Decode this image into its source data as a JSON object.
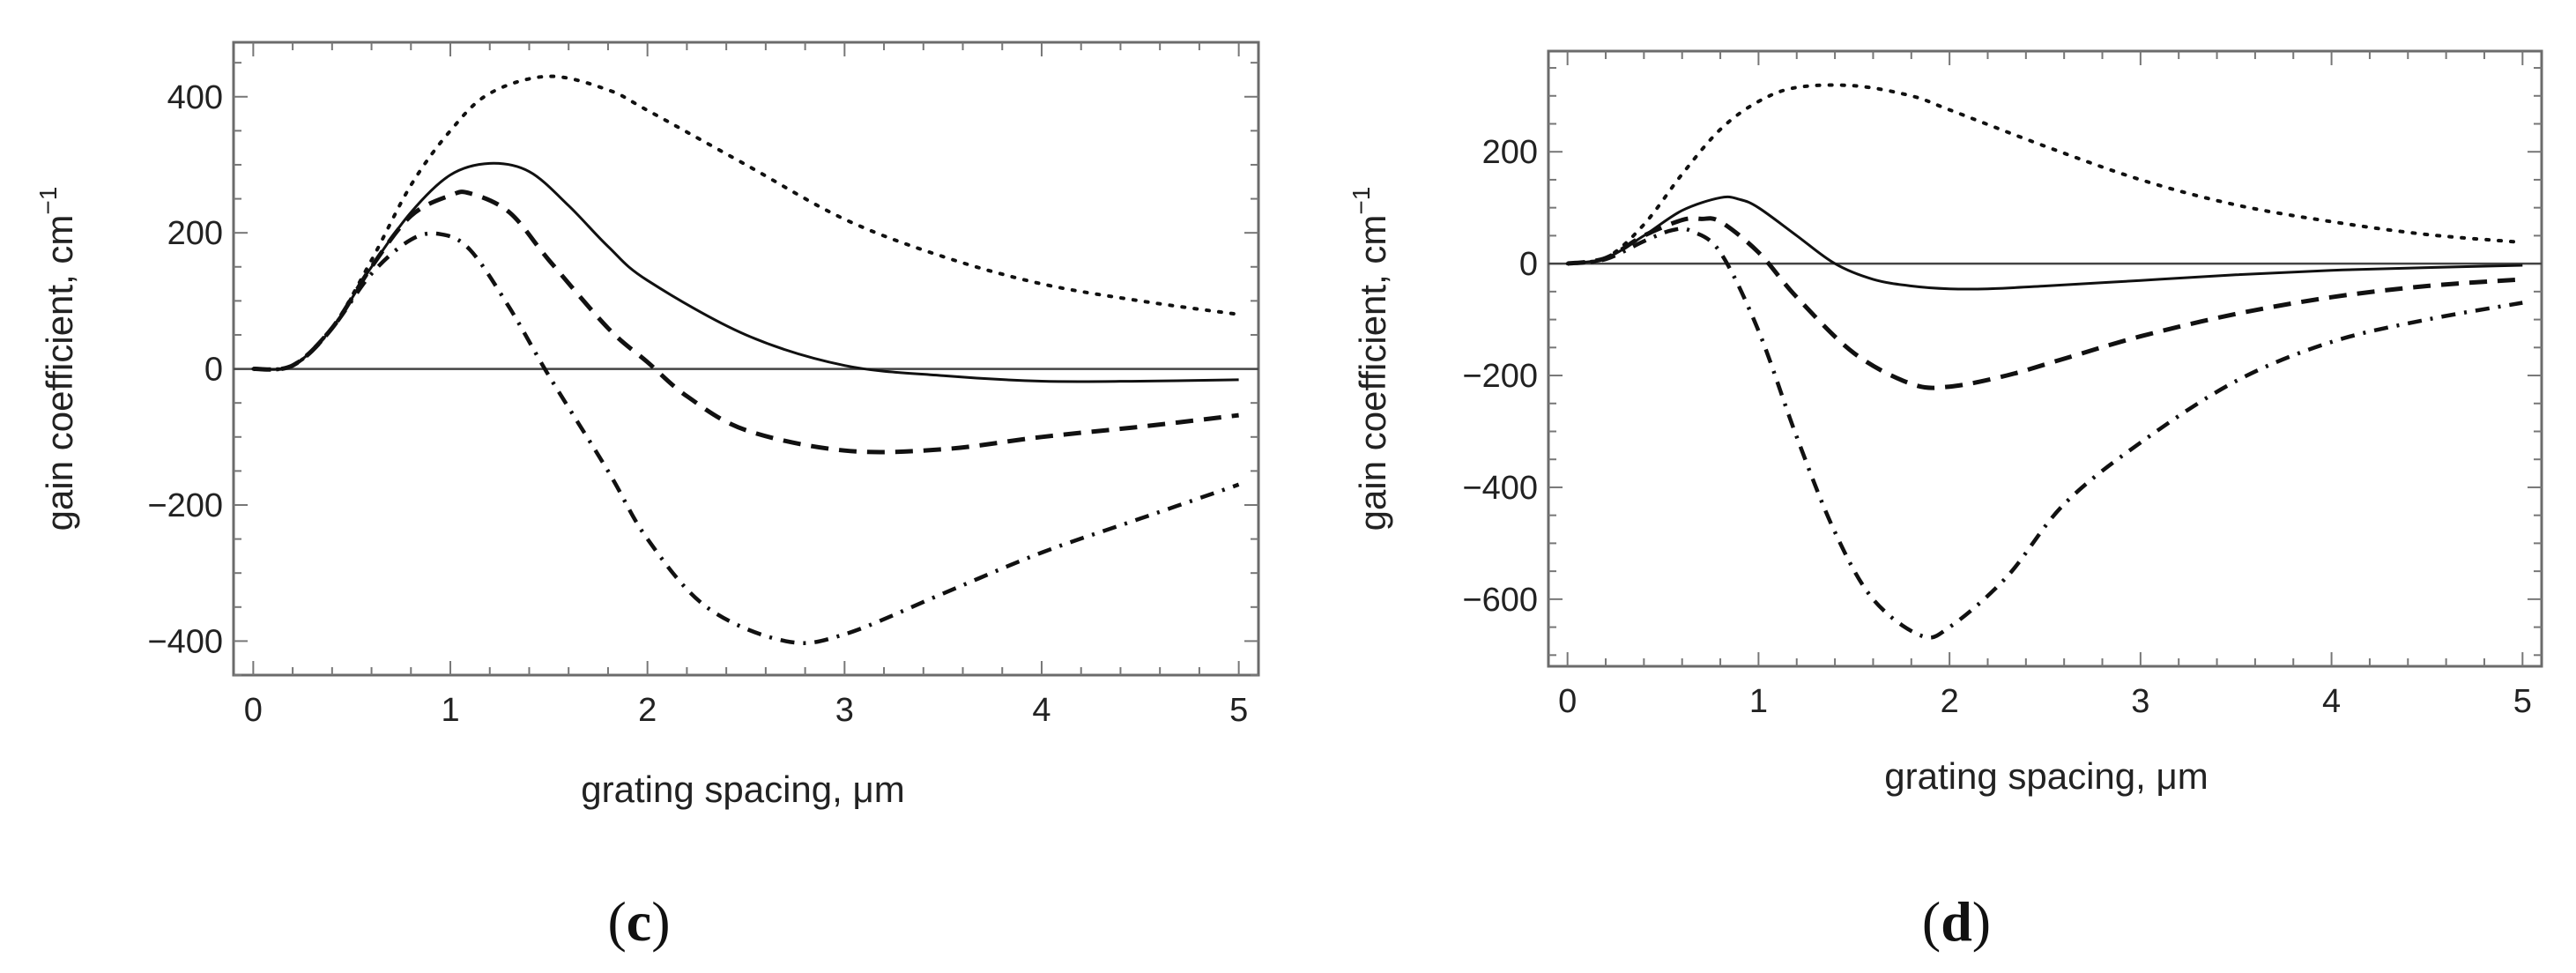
{
  "chart_data": [
    {
      "type": "line",
      "panel_label": "c",
      "xlabel": "grating spacing,  μm",
      "ylabel_main": "gain coefficient,  cm",
      "ylabel_exponent": "−1",
      "xlim": [
        -0.1,
        5.1
      ],
      "ylim": [
        -450,
        480
      ],
      "xticks": [
        0,
        1,
        2,
        3,
        4,
        5
      ],
      "xtick_labels": [
        "0",
        "1",
        "2",
        "3",
        "4",
        "5"
      ],
      "yticks": [
        -400,
        -200,
        0,
        200,
        400
      ],
      "ytick_labels": [
        "−400",
        "−200",
        "0",
        "200",
        "400"
      ],
      "grid": false,
      "zero_line": true,
      "series": [
        {
          "name": "dotted",
          "style": "dotted",
          "x": [
            0,
            0.2,
            0.4,
            0.6,
            0.8,
            1.0,
            1.2,
            1.5,
            1.8,
            2.0,
            2.5,
            3.0,
            3.5,
            4.0,
            4.5,
            5.0
          ],
          "y": [
            0,
            5,
            60,
            160,
            270,
            350,
            405,
            430,
            410,
            380,
            300,
            220,
            165,
            125,
            100,
            80
          ]
        },
        {
          "name": "solid",
          "style": "solid",
          "x": [
            0,
            0.2,
            0.4,
            0.6,
            0.8,
            1.0,
            1.2,
            1.4,
            1.6,
            1.8,
            2.0,
            2.5,
            3.0,
            3.5,
            4.0,
            4.5,
            5.0
          ],
          "y": [
            0,
            5,
            60,
            150,
            230,
            285,
            302,
            290,
            240,
            180,
            130,
            50,
            5,
            -10,
            -18,
            -18,
            -16
          ]
        },
        {
          "name": "dashed",
          "style": "dashed",
          "x": [
            0,
            0.2,
            0.4,
            0.6,
            0.8,
            1.0,
            1.1,
            1.3,
            1.5,
            1.8,
            2.0,
            2.2,
            2.5,
            3.0,
            3.5,
            4.0,
            4.5,
            5.0
          ],
          "y": [
            0,
            5,
            60,
            150,
            225,
            255,
            258,
            230,
            160,
            60,
            10,
            -40,
            -90,
            -120,
            -118,
            -100,
            -85,
            -68
          ]
        },
        {
          "name": "dash-dot",
          "style": "dashdot",
          "x": [
            0,
            0.2,
            0.4,
            0.6,
            0.8,
            0.95,
            1.1,
            1.3,
            1.5,
            1.8,
            2.0,
            2.3,
            2.7,
            3.0,
            3.5,
            4.0,
            4.5,
            5.0
          ],
          "y": [
            0,
            5,
            60,
            140,
            190,
            198,
            175,
            90,
            -10,
            -150,
            -250,
            -350,
            -400,
            -390,
            -330,
            -270,
            -220,
            -170
          ]
        }
      ]
    },
    {
      "type": "line",
      "panel_label": "d",
      "xlabel": "grating spacing,  μm",
      "ylabel_main": "gain coefficient,  cm",
      "ylabel_exponent": "−1",
      "xlim": [
        -0.1,
        5.1
      ],
      "ylim": [
        -720,
        380
      ],
      "xticks": [
        0,
        1,
        2,
        3,
        4,
        5
      ],
      "xtick_labels": [
        "0",
        "1",
        "2",
        "3",
        "4",
        "5"
      ],
      "yticks": [
        -600,
        -400,
        -200,
        0,
        200
      ],
      "ytick_labels": [
        "−600",
        "−400",
        "−200",
        "0",
        "200"
      ],
      "grid": false,
      "zero_line": true,
      "series": [
        {
          "name": "dotted",
          "style": "dotted",
          "x": [
            0,
            0.2,
            0.4,
            0.6,
            0.8,
            1.0,
            1.2,
            1.5,
            1.8,
            2.0,
            2.5,
            3.0,
            3.5,
            4.0,
            4.5,
            5.0
          ],
          "y": [
            0,
            10,
            70,
            160,
            240,
            290,
            315,
            318,
            300,
            275,
            210,
            150,
            105,
            75,
            52,
            38
          ]
        },
        {
          "name": "solid",
          "style": "solid",
          "x": [
            0,
            0.2,
            0.4,
            0.6,
            0.8,
            0.9,
            1.0,
            1.2,
            1.4,
            1.6,
            1.8,
            2.0,
            2.2,
            2.5,
            3.0,
            3.5,
            4.0,
            4.5,
            5.0
          ],
          "y": [
            0,
            10,
            50,
            95,
            118,
            115,
            100,
            50,
            0,
            -28,
            -40,
            -45,
            -45,
            -40,
            -30,
            -20,
            -12,
            -7,
            -3
          ]
        },
        {
          "name": "dashed",
          "style": "dashed",
          "x": [
            0,
            0.2,
            0.4,
            0.6,
            0.7,
            0.8,
            1.0,
            1.2,
            1.5,
            1.8,
            2.0,
            2.3,
            2.6,
            3.0,
            3.5,
            4.0,
            4.5,
            5.0
          ],
          "y": [
            0,
            10,
            50,
            78,
            80,
            75,
            20,
            -60,
            -160,
            -215,
            -220,
            -200,
            -170,
            -130,
            -90,
            -60,
            -40,
            -28
          ]
        },
        {
          "name": "dash-dot",
          "style": "dashdot",
          "x": [
            0,
            0.2,
            0.4,
            0.55,
            0.65,
            0.8,
            1.0,
            1.2,
            1.4,
            1.6,
            1.85,
            2.0,
            2.3,
            2.6,
            3.0,
            3.5,
            4.0,
            4.5,
            5.0
          ],
          "y": [
            0,
            8,
            40,
            60,
            58,
            20,
            -120,
            -310,
            -480,
            -600,
            -665,
            -650,
            -560,
            -430,
            -320,
            -210,
            -140,
            -100,
            -70
          ]
        }
      ]
    }
  ]
}
